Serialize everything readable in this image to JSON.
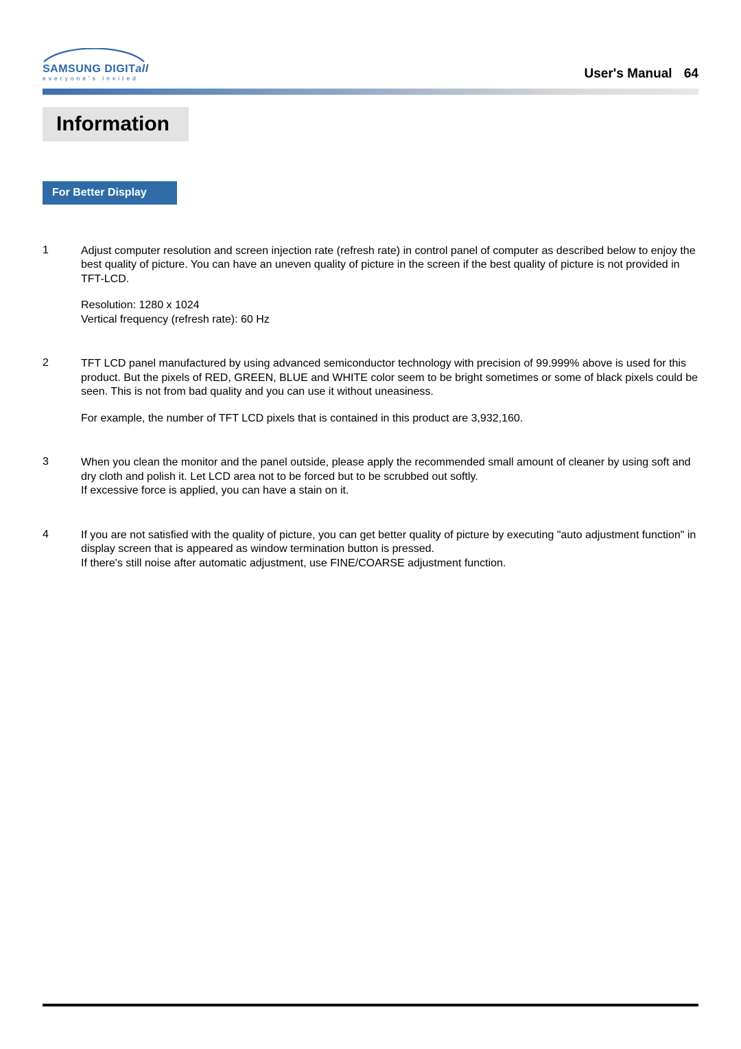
{
  "logo": {
    "brand_main": "SAMSUNG DIGIT",
    "brand_suffix": "all",
    "tagline": "everyone's invited",
    "swoosh_color": "#2b68a8"
  },
  "header": {
    "manual_label": "User's Manual",
    "page_number": "64"
  },
  "section": {
    "title": "Information"
  },
  "subsection": {
    "title": "For Better Display"
  },
  "items": [
    {
      "num": "1",
      "paragraphs": [
        "Adjust computer resolution and screen injection rate (refresh rate) in control panel of computer as described below to enjoy the best quality of picture. You can have an uneven quality of picture in the screen if the best quality of picture is not provided in TFT-LCD.",
        "Resolution: 1280 x 1024\nVertical frequency (refresh rate): 60 Hz"
      ]
    },
    {
      "num": "2",
      "paragraphs": [
        "TFT LCD panel manufactured by using advanced semiconductor technology with precision of 99.999% above is used for this product. But the pixels of RED, GREEN, BLUE and WHITE color seem to be bright sometimes or some of black pixels could be seen. This is not from bad quality and you can use it without uneasiness.",
        "For example, the number of TFT LCD pixels that is contained in this product are 3,932,160."
      ]
    },
    {
      "num": "3",
      "paragraphs": [
        "When you clean the monitor and the panel outside, please apply the recommended small amount of cleaner by using soft and dry cloth and polish it. Let LCD area not to be forced but to be scrubbed out softly.\nIf excessive force is applied, you can have a stain on it."
      ]
    },
    {
      "num": "4",
      "paragraphs": [
        "If you are not satisfied with the quality of picture, you can get better quality of picture by executing \"auto adjustment function\" in display screen that is appeared as window termination button is pressed.\nIf there's still noise after automatic adjustment, use FINE/COARSE adjustment function."
      ]
    }
  ],
  "colors": {
    "header_rule_start": "#3b6fae",
    "header_rule_end": "#e8e8e8",
    "section_shade": "#e3e3e3",
    "sub_banner_bg": "#2f6ca7",
    "sub_banner_fg": "#ffffff",
    "bottom_rule": "#000000",
    "text": "#000000",
    "logo": "#2b68a8"
  },
  "typography": {
    "section_title_pt": 30,
    "sub_title_pt": 16,
    "body_pt": 16,
    "manual_label_pt": 19
  }
}
